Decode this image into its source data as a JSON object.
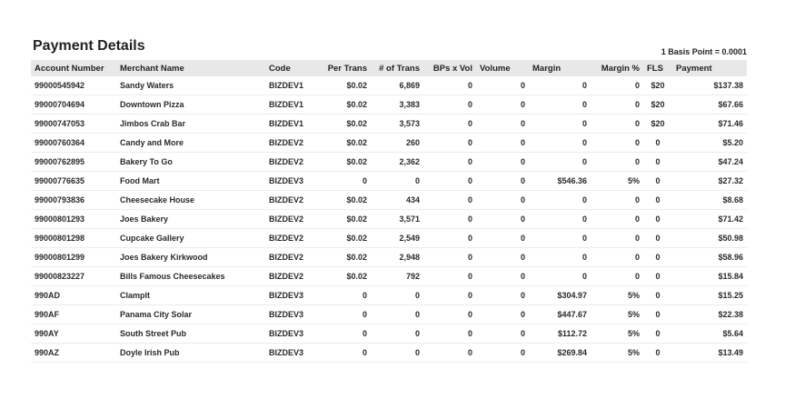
{
  "title": "Payment Details",
  "basis_note": "1 Basis Point = 0.0001",
  "columns": [
    "Account Number",
    "Merchant Name",
    "Code",
    "Per Trans",
    "# of Trans",
    "BPs x Vol",
    "Volume",
    "Margin",
    "Margin %",
    "FLS",
    "Payment"
  ],
  "rows": [
    [
      "99000545942",
      "Sandy Waters",
      "BIZDEV1",
      "$0.02",
      "6,869",
      "0",
      "0",
      "0",
      "0",
      "$20",
      "$137.38"
    ],
    [
      "99000704694",
      "Downtown Pizza",
      "BIZDEV1",
      "$0.02",
      "3,383",
      "0",
      "0",
      "0",
      "0",
      "$20",
      "$67.66"
    ],
    [
      "99000747053",
      "Jimbos Crab Bar",
      "BIZDEV1",
      "$0.02",
      "3,573",
      "0",
      "0",
      "0",
      "0",
      "$20",
      "$71.46"
    ],
    [
      "99000760364",
      "Candy and More",
      "BIZDEV2",
      "$0.02",
      "260",
      "0",
      "0",
      "0",
      "0",
      "0",
      "$5.20"
    ],
    [
      "99000762895",
      "Bakery To Go",
      "BIZDEV2",
      "$0.02",
      "2,362",
      "0",
      "0",
      "0",
      "0",
      "0",
      "$47.24"
    ],
    [
      "99000776635",
      "Food Mart",
      "BIZDEV3",
      "0",
      "0",
      "0",
      "0",
      "$546.36",
      "5%",
      "0",
      "$27.32"
    ],
    [
      "99000793836",
      "Cheesecake House",
      "BIZDEV2",
      "$0.02",
      "434",
      "0",
      "0",
      "0",
      "0",
      "0",
      "$8.68"
    ],
    [
      "99000801293",
      "Joes Bakery",
      "BIZDEV2",
      "$0.02",
      "3,571",
      "0",
      "0",
      "0",
      "0",
      "0",
      "$71.42"
    ],
    [
      "99000801298",
      "Cupcake Gallery",
      "BIZDEV2",
      "$0.02",
      "2,549",
      "0",
      "0",
      "0",
      "0",
      "0",
      "$50.98"
    ],
    [
      "99000801299",
      "Joes Bakery Kirkwood",
      "BIZDEV2",
      "$0.02",
      "2,948",
      "0",
      "0",
      "0",
      "0",
      "0",
      "$58.96"
    ],
    [
      "99000823227",
      "Bills Famous Cheesecakes",
      "BIZDEV2",
      "$0.02",
      "792",
      "0",
      "0",
      "0",
      "0",
      "0",
      "$15.84"
    ],
    [
      "990AD",
      "Clamplt",
      "BIZDEV3",
      "0",
      "0",
      "0",
      "0",
      "$304.97",
      "5%",
      "0",
      "$15.25"
    ],
    [
      "990AF",
      "Panama City Solar",
      "BIZDEV3",
      "0",
      "0",
      "0",
      "0",
      "$447.67",
      "5%",
      "0",
      "$22.38"
    ],
    [
      "990AY",
      "South Street Pub",
      "BIZDEV3",
      "0",
      "0",
      "0",
      "0",
      "$112.72",
      "5%",
      "0",
      "$5.64"
    ],
    [
      "990AZ",
      "Doyle Irish Pub",
      "BIZDEV3",
      "0",
      "0",
      "0",
      "0",
      "$269.84",
      "5%",
      "0",
      "$13.49"
    ]
  ]
}
